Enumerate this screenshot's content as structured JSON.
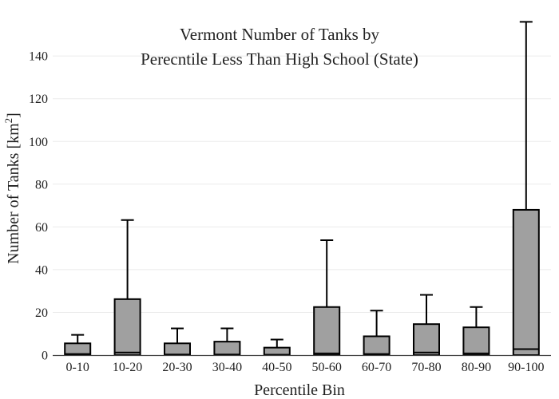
{
  "chart_data": {
    "type": "box",
    "title_lines": [
      "Vermont Number of Tanks by",
      "Perecntile Less Than High School (State)"
    ],
    "xlabel": "Percentile Bin",
    "ylabel_main": "Number of Tanks  [km",
    "ylabel_sup": "2",
    "ylabel_end": "]",
    "ylim": [
      0,
      155
    ],
    "yticks": [
      "0",
      "20",
      "40",
      "60",
      "80",
      "100",
      "120",
      "140"
    ],
    "categories": [
      "0-10",
      "10-20",
      "20-30",
      "30-40",
      "40-50",
      "50-60",
      "60-70",
      "70-80",
      "80-90",
      "90-100"
    ],
    "boxes": [
      {
        "q1": 0,
        "median": 0.5,
        "q3": 5.5,
        "upper": 9.5
      },
      {
        "q1": 0,
        "median": 1.2,
        "q3": 26.2,
        "upper": 63.2
      },
      {
        "q1": 0,
        "median": 0.3,
        "q3": 5.5,
        "upper": 12.5
      },
      {
        "q1": 0,
        "median": 0.3,
        "q3": 6.3,
        "upper": 12.5
      },
      {
        "q1": 0,
        "median": 0.2,
        "q3": 3.5,
        "upper": 7.3
      },
      {
        "q1": 0,
        "median": 0.8,
        "q3": 22.5,
        "upper": 53.8
      },
      {
        "q1": 0,
        "median": 0.5,
        "q3": 8.8,
        "upper": 20.8
      },
      {
        "q1": 0,
        "median": 1.2,
        "q3": 14.5,
        "upper": 28.2
      },
      {
        "q1": 0,
        "median": 0.8,
        "q3": 13.0,
        "upper": 22.5
      },
      {
        "q1": 0,
        "median": 2.8,
        "q3": 68.0,
        "upper": 156.0
      }
    ],
    "grid": true,
    "box_color": "#a0a0a0"
  }
}
